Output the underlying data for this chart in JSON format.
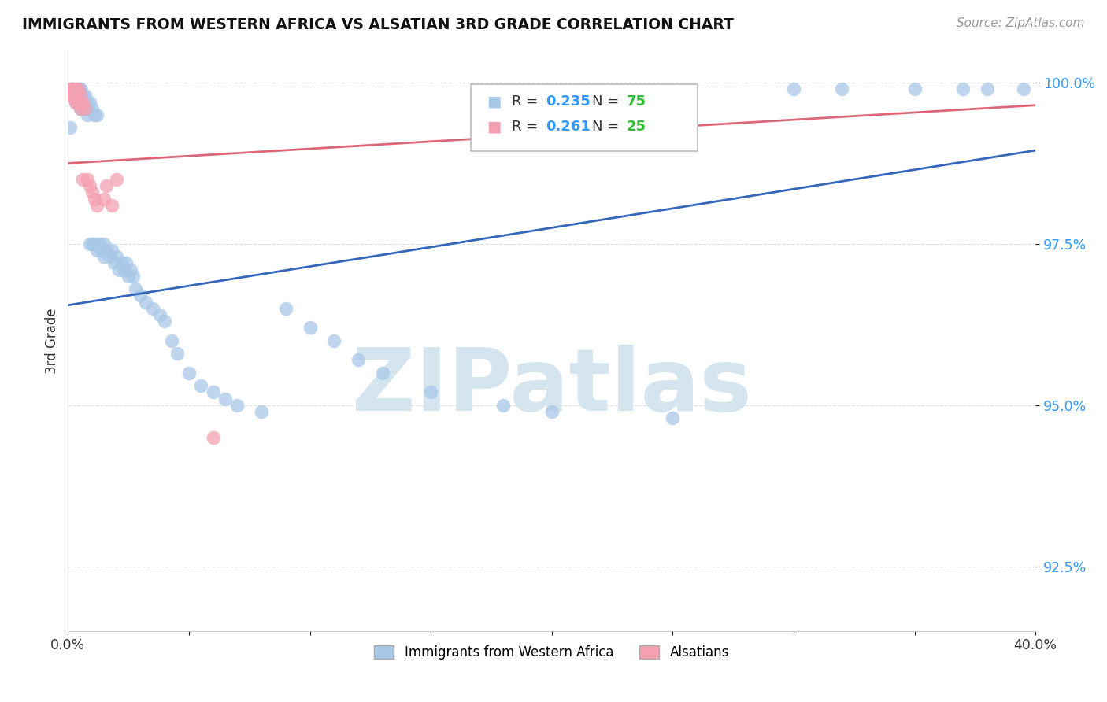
{
  "title": "IMMIGRANTS FROM WESTERN AFRICA VS ALSATIAN 3RD GRADE CORRELATION CHART",
  "source": "Source: ZipAtlas.com",
  "ylabel": "3rd Grade",
  "xlim": [
    0.0,
    0.4
  ],
  "ylim": [
    0.915,
    1.005
  ],
  "yticks": [
    0.925,
    0.95,
    0.975,
    1.0
  ],
  "ytick_labels": [
    "92.5%",
    "95.0%",
    "97.5%",
    "100.0%"
  ],
  "xticks": [
    0.0,
    0.05,
    0.1,
    0.15,
    0.2,
    0.25,
    0.3,
    0.35,
    0.4
  ],
  "xtick_labels": [
    "0.0%",
    "",
    "",
    "",
    "",
    "",
    "",
    "",
    "40.0%"
  ],
  "blue_R": 0.235,
  "blue_N": 75,
  "pink_R": 0.261,
  "pink_N": 25,
  "blue_color": "#A8C8E8",
  "pink_color": "#F4A0B0",
  "blue_line_color": "#3366BB",
  "pink_line_color": "#DD6677",
  "legend_R_color": "#3399FF",
  "legend_N_color": "#33BB33",
  "watermark_color": "#D5E5F0",
  "blue_x": [
    0.001,
    0.002,
    0.002,
    0.003,
    0.003,
    0.003,
    0.004,
    0.004,
    0.004,
    0.005,
    0.005,
    0.005,
    0.005,
    0.006,
    0.006,
    0.006,
    0.007,
    0.007,
    0.007,
    0.008,
    0.008,
    0.008,
    0.009,
    0.009,
    0.01,
    0.01,
    0.011,
    0.011,
    0.012,
    0.012,
    0.013,
    0.014,
    0.015,
    0.015,
    0.016,
    0.017,
    0.018,
    0.019,
    0.02,
    0.021,
    0.022,
    0.023,
    0.024,
    0.025,
    0.026,
    0.027,
    0.028,
    0.03,
    0.032,
    0.035,
    0.038,
    0.04,
    0.043,
    0.045,
    0.05,
    0.055,
    0.06,
    0.065,
    0.07,
    0.08,
    0.09,
    0.1,
    0.11,
    0.12,
    0.13,
    0.15,
    0.18,
    0.2,
    0.25,
    0.3,
    0.32,
    0.35,
    0.37,
    0.38,
    0.395
  ],
  "blue_y": [
    0.993,
    0.999,
    0.999,
    0.999,
    0.998,
    0.997,
    0.999,
    0.998,
    0.997,
    0.999,
    0.999,
    0.997,
    0.996,
    0.998,
    0.997,
    0.996,
    0.998,
    0.997,
    0.996,
    0.997,
    0.996,
    0.995,
    0.997,
    0.975,
    0.996,
    0.975,
    0.995,
    0.975,
    0.995,
    0.974,
    0.975,
    0.974,
    0.975,
    0.973,
    0.974,
    0.973,
    0.974,
    0.972,
    0.973,
    0.971,
    0.972,
    0.971,
    0.972,
    0.97,
    0.971,
    0.97,
    0.968,
    0.967,
    0.966,
    0.965,
    0.964,
    0.963,
    0.96,
    0.958,
    0.955,
    0.953,
    0.952,
    0.951,
    0.95,
    0.949,
    0.965,
    0.962,
    0.96,
    0.957,
    0.955,
    0.952,
    0.95,
    0.949,
    0.948,
    0.999,
    0.999,
    0.999,
    0.999,
    0.999,
    0.999
  ],
  "pink_x": [
    0.001,
    0.001,
    0.002,
    0.002,
    0.003,
    0.003,
    0.003,
    0.004,
    0.004,
    0.005,
    0.005,
    0.005,
    0.006,
    0.006,
    0.007,
    0.008,
    0.009,
    0.01,
    0.011,
    0.012,
    0.015,
    0.016,
    0.018,
    0.02,
    0.06
  ],
  "pink_y": [
    0.999,
    0.998,
    0.999,
    0.998,
    0.999,
    0.998,
    0.997,
    0.999,
    0.997,
    0.998,
    0.997,
    0.996,
    0.997,
    0.985,
    0.996,
    0.985,
    0.984,
    0.983,
    0.982,
    0.981,
    0.982,
    0.984,
    0.981,
    0.985,
    0.945
  ],
  "blue_line_x": [
    0.0,
    0.4
  ],
  "blue_line_y": [
    0.9655,
    0.9895
  ],
  "pink_line_x": [
    0.0,
    0.4
  ],
  "pink_line_y": [
    0.9875,
    0.9965
  ]
}
